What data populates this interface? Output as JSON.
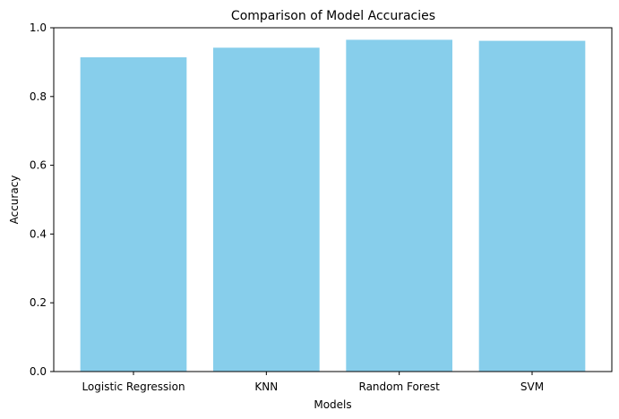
{
  "chart_data": {
    "type": "bar",
    "title": "Comparison of Model Accuracies",
    "xlabel": "Models",
    "ylabel": "Accuracy",
    "categories": [
      "Logistic Regression",
      "KNN",
      "Random Forest",
      "SVM"
    ],
    "values": [
      0.914,
      0.942,
      0.965,
      0.962
    ],
    "ylim": [
      0,
      1
    ],
    "yticks": [
      "0.0",
      "0.2",
      "0.4",
      "0.6",
      "0.8",
      "1.0"
    ],
    "grid": false,
    "bar_color": "#87CEEB"
  }
}
